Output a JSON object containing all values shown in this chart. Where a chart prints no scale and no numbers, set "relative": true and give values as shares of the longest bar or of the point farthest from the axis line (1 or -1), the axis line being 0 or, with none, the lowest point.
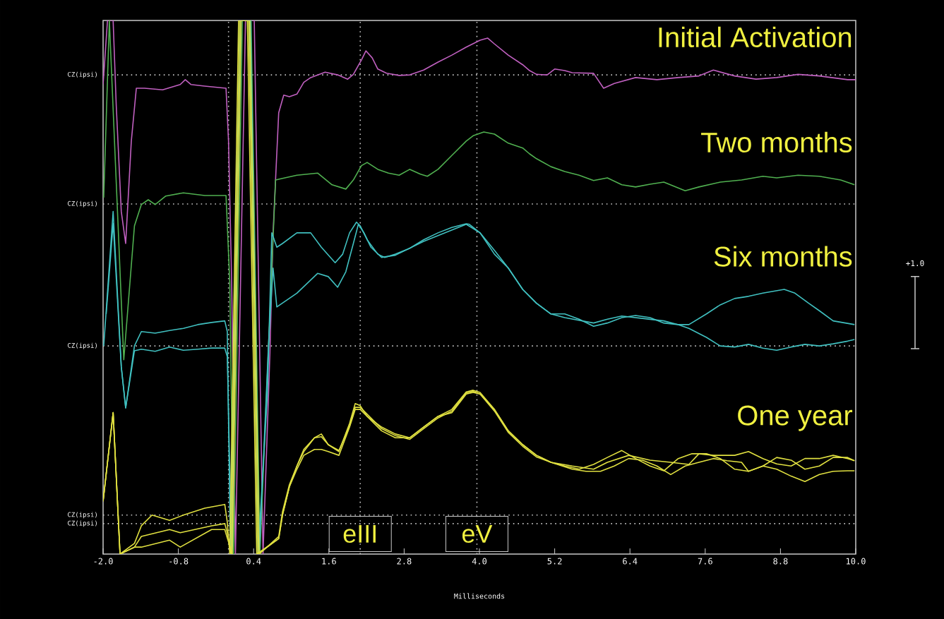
{
  "chart_data": {
    "type": "line",
    "relative": true,
    "xlabel": "Milliseconds",
    "xlim": [
      -2.0,
      10.0
    ],
    "xticks": [
      {
        "value": -2.0,
        "label": "-2.0"
      },
      {
        "value": -0.8,
        "label": "-0.8"
      },
      {
        "value": 0.4,
        "label": "0.4"
      },
      {
        "value": 1.6,
        "label": "1.6"
      },
      {
        "value": 2.8,
        "label": "2.8"
      },
      {
        "value": 4.0,
        "label": "4.0"
      },
      {
        "value": 5.2,
        "label": "5.2"
      },
      {
        "value": 6.4,
        "label": "6.4"
      },
      {
        "value": 7.6,
        "label": "7.6"
      },
      {
        "value": 8.8,
        "label": "8.8"
      },
      {
        "value": 10.0,
        "label": "10.0"
      }
    ],
    "grid": false,
    "marker": "none",
    "line_style": "solid",
    "series": [
      {
        "name": "Initial Activation",
        "color": "#c060c0",
        "x": [
          -2.0,
          -1.93,
          -1.84,
          -1.79,
          -1.71,
          -1.64,
          -1.55,
          -1.47,
          -1.34,
          -1.05,
          -0.77,
          -0.69,
          -0.6,
          -0.38,
          -0.04,
          0.0,
          0.05,
          0.11,
          0.27,
          0.41,
          0.55,
          0.66,
          0.71,
          0.8,
          0.88,
          0.97,
          1.09,
          1.2,
          1.31,
          1.54,
          1.74,
          1.9,
          1.99,
          2.12,
          2.19,
          2.29,
          2.38,
          2.52,
          2.72,
          2.89,
          3.11,
          3.34,
          3.56,
          3.79,
          4.01,
          4.13,
          4.24,
          4.46,
          4.69,
          4.8,
          4.91,
          5.08,
          5.2,
          5.36,
          5.48,
          5.82,
          5.98,
          6.15,
          6.49,
          6.83,
          7.17,
          7.5,
          7.73,
          8.07,
          8.41,
          8.74,
          9.08,
          9.42,
          9.87,
          10.0
        ],
        "values": [
          0.88,
          1.0,
          1.0,
          0.84,
          0.642,
          0.582,
          0.774,
          0.873,
          0.873,
          0.87,
          0.88,
          0.889,
          0.88,
          0.877,
          0.873,
          0.774,
          0.509,
          0,
          1.0,
          1.0,
          0,
          0.377,
          0.602,
          0.827,
          0.86,
          0.857,
          0.862,
          0.884,
          0.893,
          0.903,
          0.898,
          0.89,
          0.899,
          0.926,
          0.943,
          0.93,
          0.909,
          0.901,
          0.897,
          0.898,
          0.907,
          0.922,
          0.935,
          0.95,
          0.963,
          0.967,
          0.956,
          0.935,
          0.917,
          0.906,
          0.899,
          0.898,
          0.909,
          0.906,
          0.902,
          0.901,
          0.873,
          0.882,
          0.893,
          0.889,
          0.893,
          0.896,
          0.907,
          0.896,
          0.89,
          0.893,
          0.899,
          0.896,
          0.889,
          0.889
        ]
      },
      {
        "name": "Two months",
        "color": "#50b050",
        "x": [
          -1.99,
          -1.9,
          -1.67,
          -1.5,
          -1.39,
          -1.28,
          -1.17,
          -1.0,
          -0.72,
          -0.38,
          -0.04,
          0.02,
          0.08,
          0.22,
          0.36,
          0.5,
          0.69,
          0.75,
          0.86,
          1.09,
          1.42,
          1.65,
          1.87,
          1.99,
          2.12,
          2.21,
          2.38,
          2.55,
          2.72,
          2.89,
          3.06,
          3.17,
          3.34,
          3.56,
          3.79,
          3.9,
          4.07,
          4.24,
          4.46,
          4.69,
          4.8,
          4.91,
          5.14,
          5.36,
          5.59,
          5.82,
          6.04,
          6.27,
          6.49,
          6.72,
          6.94,
          7.28,
          7.5,
          7.84,
          8.18,
          8.52,
          8.74,
          9.08,
          9.42,
          9.76,
          9.98
        ],
        "values": [
          0.668,
          1.0,
          0.364,
          0.615,
          0.655,
          0.664,
          0.655,
          0.671,
          0.677,
          0.672,
          0.672,
          0.509,
          0,
          1.0,
          1.0,
          0,
          0.536,
          0.701,
          0.704,
          0.71,
          0.714,
          0.692,
          0.684,
          0.701,
          0.728,
          0.734,
          0.721,
          0.714,
          0.71,
          0.721,
          0.712,
          0.708,
          0.721,
          0.747,
          0.774,
          0.784,
          0.791,
          0.787,
          0.77,
          0.761,
          0.75,
          0.741,
          0.726,
          0.717,
          0.71,
          0.7,
          0.705,
          0.692,
          0.688,
          0.693,
          0.697,
          0.681,
          0.688,
          0.697,
          0.701,
          0.708,
          0.705,
          0.71,
          0.708,
          0.701,
          0.692
        ]
      },
      {
        "name": "Six months",
        "color": "#40c0c0",
        "x": [
          -1.99,
          -1.84,
          -1.71,
          -1.64,
          -1.5,
          -1.39,
          -1.17,
          -0.94,
          -0.72,
          -0.49,
          -0.27,
          -0.06,
          -0.02,
          0.03,
          0.18,
          0.33,
          0.47,
          0.62,
          0.69,
          0.77,
          0.86,
          1.09,
          1.31,
          1.48,
          1.7,
          1.82,
          1.93,
          2.04,
          2.1,
          2.21,
          2.38,
          2.49,
          2.66,
          2.89,
          3.11,
          3.34,
          3.56,
          3.79,
          3.84,
          4.01,
          4.24,
          4.46,
          4.69,
          4.91,
          5.14,
          5.36,
          5.59,
          5.82,
          6.04,
          6.27,
          6.49,
          6.72,
          6.94,
          7.17,
          7.34,
          7.62,
          7.84,
          8.07,
          8.29,
          8.52,
          8.86,
          9.03,
          9.25,
          9.42,
          9.64,
          9.98
        ],
        "values": [
          0.39,
          0.642,
          0.351,
          0.274,
          0.39,
          0.417,
          0.414,
          0.419,
          0.423,
          0.43,
          0.434,
          0.437,
          0.417,
          0,
          1.0,
          1.0,
          0,
          0.3,
          0.602,
          0.575,
          0.582,
          0.602,
          0.602,
          0.575,
          0.546,
          0.562,
          0.602,
          0.622,
          0.615,
          0.589,
          0.562,
          0.556,
          0.562,
          0.573,
          0.589,
          0.602,
          0.612,
          0.619,
          0.618,
          0.602,
          0.569,
          0.536,
          0.496,
          0.47,
          0.45,
          0.45,
          0.44,
          0.427,
          0.433,
          0.443,
          0.447,
          0.443,
          0.433,
          0.43,
          0.43,
          0.45,
          0.467,
          0.479,
          0.483,
          0.489,
          0.496,
          0.489,
          0.47,
          0.456,
          0.437,
          0.43
        ]
      },
      {
        "color": "#40c0c0",
        "x": [
          -1.95,
          -1.84,
          -1.71,
          -1.64,
          -1.5,
          -1.39,
          -1.17,
          -0.94,
          -0.72,
          -0.49,
          -0.27,
          -0.06,
          -0.02,
          0.05,
          0.2,
          0.35,
          0.49,
          0.64,
          0.71,
          0.77,
          1.09,
          1.42,
          1.59,
          1.74,
          1.87,
          1.99,
          2.07,
          2.16,
          2.27,
          2.44,
          2.66,
          3.11,
          3.79,
          4.01,
          4.24,
          4.46,
          4.69,
          4.91,
          5.14,
          5.36,
          5.82,
          6.04,
          6.27,
          6.72,
          6.94,
          7.17,
          7.34,
          7.62,
          7.84,
          8.07,
          8.29,
          8.52,
          8.74,
          8.97,
          9.19,
          9.42,
          9.64,
          9.87,
          9.98
        ],
        "values": [
          0.45,
          0.62,
          0.351,
          0.274,
          0.381,
          0.384,
          0.38,
          0.388,
          0.382,
          0.384,
          0.386,
          0.386,
          0.37,
          0,
          1.0,
          1.0,
          0,
          0.4,
          0.536,
          0.463,
          0.489,
          0.526,
          0.52,
          0.5,
          0.529,
          0.582,
          0.618,
          0.602,
          0.575,
          0.556,
          0.56,
          0.586,
          0.618,
          0.602,
          0.562,
          0.536,
          0.496,
          0.47,
          0.45,
          0.443,
          0.433,
          0.44,
          0.446,
          0.44,
          0.437,
          0.43,
          0.423,
          0.406,
          0.39,
          0.388,
          0.393,
          0.386,
          0.382,
          0.388,
          0.393,
          0.39,
          0.394,
          0.399,
          0.402
        ]
      },
      {
        "name": "One year",
        "color": "#e0e040",
        "x": [
          -2.0,
          -1.84,
          -1.73,
          -1.5,
          -1.39,
          -1.22,
          -0.94,
          -0.72,
          -0.38,
          -0.06,
          -0.02,
          0.02,
          0.16,
          0.3,
          0.45,
          0.8,
          0.86,
          0.97,
          1.09,
          1.2,
          1.37,
          1.48,
          1.59,
          1.76,
          1.93,
          2.02,
          2.1,
          2.21,
          2.44,
          2.66,
          2.89,
          3.11,
          3.34,
          3.56,
          3.79,
          3.9,
          4.01,
          4.24,
          4.46,
          4.69,
          4.91,
          5.14,
          5.36,
          5.59,
          5.82,
          6.04,
          6.27,
          6.49,
          6.72,
          6.94,
          7.17,
          7.39,
          7.62,
          7.84,
          8.07,
          8.29,
          8.52,
          8.74,
          8.97,
          9.19,
          9.42,
          9.64,
          9.87,
          9.98
        ],
        "values": [
          0.099,
          0.265,
          0,
          0.02,
          0.053,
          0.073,
          0.063,
          0.073,
          0.086,
          0.093,
          0.06,
          0,
          1.0,
          1.0,
          0,
          0.029,
          0.073,
          0.126,
          0.165,
          0.192,
          0.218,
          0.225,
          0.205,
          0.192,
          0.245,
          0.282,
          0.278,
          0.258,
          0.238,
          0.225,
          0.218,
          0.238,
          0.258,
          0.271,
          0.304,
          0.307,
          0.303,
          0.271,
          0.231,
          0.205,
          0.185,
          0.172,
          0.165,
          0.159,
          0.168,
          0.181,
          0.194,
          0.179,
          0.165,
          0.156,
          0.179,
          0.188,
          0.188,
          0.179,
          0.159,
          0.155,
          0.165,
          0.159,
          0.146,
          0.136,
          0.149,
          0.155,
          0.156,
          0.156
        ]
      },
      {
        "color": "#e0e040",
        "x": [
          -2.0,
          -1.84,
          -1.73,
          -1.5,
          -1.39,
          -0.94,
          -0.77,
          -0.27,
          -0.06,
          -0.02,
          0.04,
          0.18,
          0.32,
          0.47,
          0.8,
          0.86,
          0.97,
          1.09,
          1.2,
          1.37,
          1.48,
          1.59,
          1.76,
          1.93,
          2.02,
          2.1,
          2.21,
          2.44,
          2.66,
          2.89,
          3.11,
          3.34,
          3.56,
          3.79,
          3.9,
          4.01,
          4.24,
          4.46,
          4.69,
          4.91,
          5.14,
          5.48,
          5.7,
          5.93,
          6.15,
          6.38,
          6.6,
          6.83,
          7.05,
          7.28,
          7.5,
          7.73,
          7.95,
          8.18,
          8.29,
          8.52,
          8.74,
          8.97,
          9.19,
          9.42,
          9.64,
          9.87,
          9.98
        ],
        "values": [
          0.099,
          0.265,
          0,
          0.013,
          0.033,
          0.046,
          0.04,
          0.053,
          0.057,
          0.04,
          0,
          1.0,
          1.0,
          0,
          0.029,
          0.073,
          0.126,
          0.159,
          0.185,
          0.196,
          0.196,
          0.192,
          0.185,
          0.238,
          0.271,
          0.271,
          0.258,
          0.231,
          0.218,
          0.218,
          0.238,
          0.258,
          0.265,
          0.3,
          0.303,
          0.3,
          0.271,
          0.231,
          0.205,
          0.185,
          0.172,
          0.159,
          0.155,
          0.155,
          0.165,
          0.179,
          0.176,
          0.165,
          0.149,
          0.165,
          0.172,
          0.179,
          0.175,
          0.172,
          0.155,
          0.165,
          0.181,
          0.176,
          0.159,
          0.165,
          0.181,
          0.181,
          0.175
        ]
      },
      {
        "color": "#e0e040",
        "x": [
          -2.0,
          -1.84,
          -1.73,
          -1.5,
          -1.39,
          -0.94,
          -0.77,
          -0.27,
          -0.06,
          -0.02,
          0.06,
          0.2,
          0.34,
          0.49,
          0.8,
          0.86,
          0.97,
          1.09,
          1.2,
          1.37,
          1.48,
          1.59,
          1.76,
          1.93,
          2.02,
          2.1,
          2.21,
          2.44,
          2.66,
          2.89,
          3.11,
          3.34,
          3.56,
          3.79,
          3.9,
          4.01,
          4.24,
          4.46,
          4.69,
          4.91,
          5.14,
          5.48,
          5.82,
          6.04,
          6.38,
          6.72,
          7.05,
          7.34,
          7.5,
          7.73,
          8.07,
          8.29,
          8.52,
          8.74,
          8.97,
          9.19,
          9.42,
          9.64,
          9.87,
          9.98
        ],
        "values": [
          0.099,
          0.265,
          0,
          0.013,
          0.013,
          0.026,
          0.013,
          0.046,
          0.046,
          0.03,
          0,
          1.0,
          1.0,
          0,
          0.033,
          0.079,
          0.13,
          0.165,
          0.196,
          0.218,
          0.22,
          0.205,
          0.194,
          0.24,
          0.275,
          0.275,
          0.262,
          0.235,
          0.222,
          0.215,
          0.235,
          0.255,
          0.268,
          0.302,
          0.305,
          0.3,
          0.268,
          0.228,
          0.202,
          0.182,
          0.172,
          0.165,
          0.159,
          0.172,
          0.185,
          0.176,
          0.172,
          0.168,
          0.188,
          0.185,
          0.185,
          0.192,
          0.179,
          0.169,
          0.165,
          0.179,
          0.179,
          0.185,
          0.179,
          0.175
        ]
      }
    ],
    "ref_lines": [
      {
        "axis": "y",
        "value": 0.898,
        "label": "CZ(ipsi)",
        "color": "#c8c8c8",
        "line_style": "dotted"
      },
      {
        "axis": "y",
        "value": 0.656,
        "label": "CZ(ipsi)",
        "color": "#c8c8c8",
        "line_style": "dotted"
      },
      {
        "axis": "y",
        "value": 0.39,
        "label": "CZ(ipsi)",
        "color": "#c8c8c8",
        "line_style": "dotted"
      },
      {
        "axis": "y",
        "value": 0.073,
        "label": "CZ(ipsi)",
        "color": "#c8c8c8",
        "line_style": "dotted"
      },
      {
        "axis": "y",
        "value": 0.057,
        "label": "CZ(ipsi)",
        "color": "#c8c8c8",
        "line_style": "dotted"
      },
      {
        "axis": "x",
        "value": 0.0,
        "color": "#c8c8c8",
        "line_style": "dotted"
      },
      {
        "axis": "x",
        "value": 2.1,
        "label": "eIII",
        "color": "#c8c8c8",
        "line_style": "dotted"
      },
      {
        "axis": "x",
        "value": 3.96,
        "label": "eV",
        "color": "#c8c8c8",
        "line_style": "dotted"
      }
    ],
    "annotations": [
      "+1.0"
    ]
  }
}
